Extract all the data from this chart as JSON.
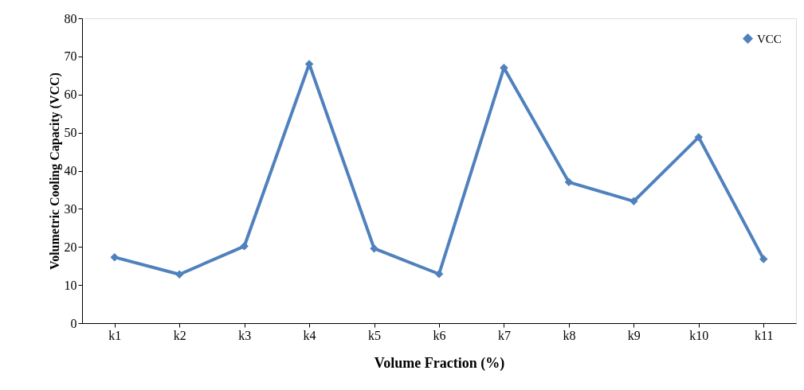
{
  "chart_data": {
    "type": "line",
    "xlabel": "Volume Fraction (%)",
    "ylabel": "Volumetric Cooling Capacity (VCC)",
    "categories": [
      "k1",
      "k2",
      "k3",
      "k4",
      "k5",
      "k6",
      "k7",
      "k8",
      "k9",
      "k10",
      "k11"
    ],
    "series": [
      {
        "name": "VCC",
        "color": "#4f81bd",
        "values": [
          17.3,
          12.8,
          20.2,
          68,
          19.6,
          12.9,
          67,
          37,
          32,
          48.8,
          16.8
        ]
      }
    ],
    "ylim": [
      0,
      80
    ],
    "yticks": [
      0,
      10,
      20,
      30,
      40,
      50,
      60,
      70,
      80
    ],
    "grid": false,
    "legend": "top right",
    "marker": "diamond",
    "line_style": "solid"
  }
}
